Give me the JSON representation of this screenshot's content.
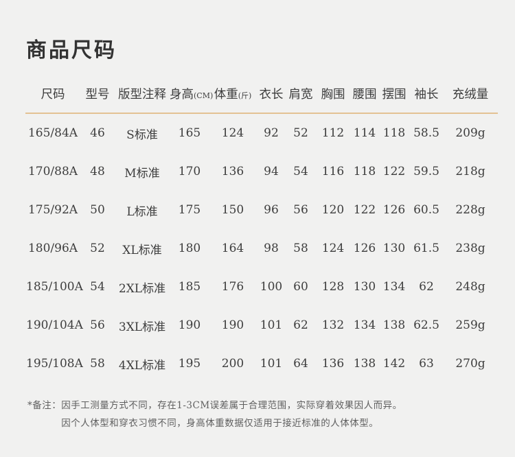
{
  "page": {
    "title": "商品尺码",
    "colors": {
      "background": "#f1f1f0",
      "text": "#3d3d3d",
      "title_text": "#333333",
      "header_divider": "#e3c193",
      "note_text": "#5f5f5f"
    }
  },
  "chart_data": {
    "type": "table",
    "title": "商品尺码",
    "headers": [
      {
        "label": "尺码",
        "unit": ""
      },
      {
        "label": "型号",
        "unit": ""
      },
      {
        "label": "版型注释",
        "unit": ""
      },
      {
        "label": "身高",
        "unit": "(CM)"
      },
      {
        "label": "体重",
        "unit": "(斤)"
      },
      {
        "label": "衣长",
        "unit": ""
      },
      {
        "label": "肩宽",
        "unit": ""
      },
      {
        "label": "胸围",
        "unit": ""
      },
      {
        "label": "腰围",
        "unit": ""
      },
      {
        "label": "摆围",
        "unit": ""
      },
      {
        "label": "袖长",
        "unit": ""
      },
      {
        "label": "充绒量",
        "unit": ""
      }
    ],
    "rows": [
      [
        "165/84A",
        "46",
        "S标准",
        "165",
        "124",
        "92",
        "52",
        "112",
        "114",
        "118",
        "58.5",
        "209g"
      ],
      [
        "170/88A",
        "48",
        "M标准",
        "170",
        "136",
        "94",
        "54",
        "116",
        "118",
        "122",
        "59.5",
        "218g"
      ],
      [
        "175/92A",
        "50",
        "L标准",
        "175",
        "150",
        "96",
        "56",
        "120",
        "122",
        "126",
        "60.5",
        "228g"
      ],
      [
        "180/96A",
        "52",
        "XL标准",
        "180",
        "164",
        "98",
        "58",
        "124",
        "126",
        "130",
        "61.5",
        "238g"
      ],
      [
        "185/100A",
        "54",
        "2XL标准",
        "185",
        "176",
        "100",
        "60",
        "128",
        "130",
        "134",
        "62",
        "248g"
      ],
      [
        "190/104A",
        "56",
        "3XL标准",
        "190",
        "190",
        "101",
        "62",
        "132",
        "134",
        "138",
        "62.5",
        "259g"
      ],
      [
        "195/108A",
        "58",
        "4XL标准",
        "195",
        "200",
        "101",
        "64",
        "136",
        "138",
        "142",
        "63",
        "270g"
      ]
    ]
  },
  "notes": {
    "prefix": "*备注：",
    "lines": [
      "因手工测量方式不同，存在1-3CM误差属于合理范围，实际穿着效果因人而异。",
      "因个人体型和穿衣习惯不同，身高体重数据仅适用于接近标准的人体体型。"
    ]
  }
}
